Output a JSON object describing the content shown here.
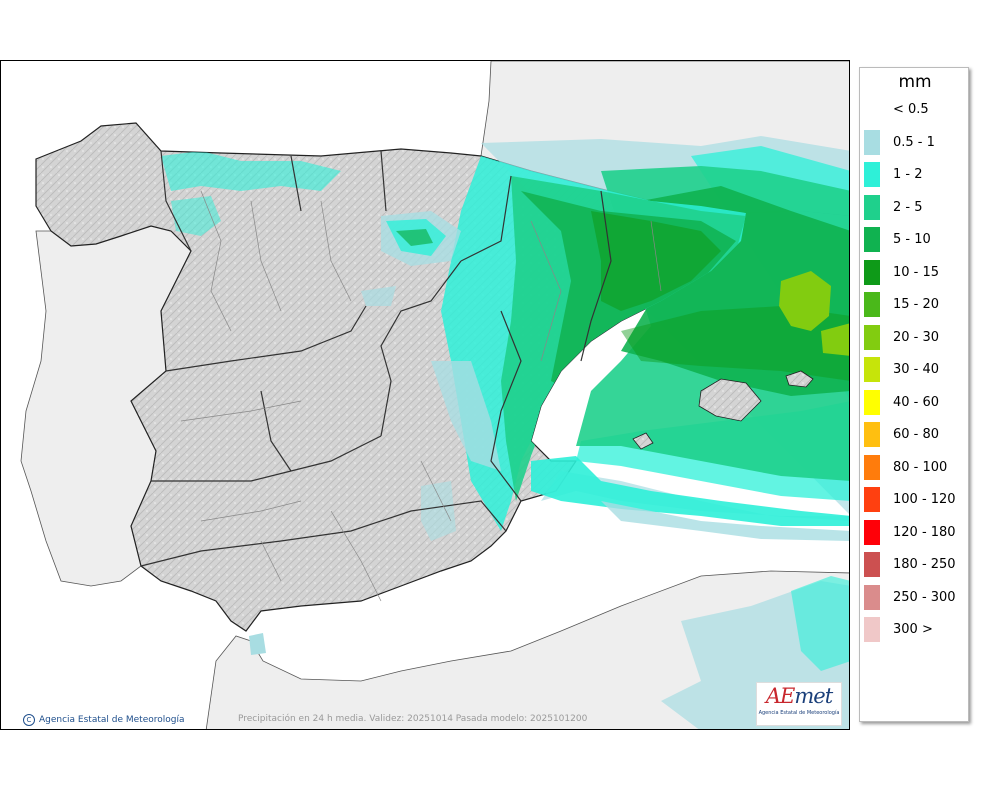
{
  "legend": {
    "unit": "mm",
    "classes": [
      {
        "label": "< 0.5",
        "color": "#ffffff"
      },
      {
        "label": "0.5 - 1",
        "color": "#a8dde2"
      },
      {
        "label": "1 - 2",
        "color": "#2ef0d8"
      },
      {
        "label": "2 - 5",
        "color": "#1fd08c"
      },
      {
        "label": "5 - 10",
        "color": "#10b250"
      },
      {
        "label": "10 - 15",
        "color": "#0e9a18"
      },
      {
        "label": "15 - 20",
        "color": "#4ab81a"
      },
      {
        "label": "20 - 30",
        "color": "#82cc10"
      },
      {
        "label": "30 - 40",
        "color": "#c6e40a"
      },
      {
        "label": "40 - 60",
        "color": "#ffff00"
      },
      {
        "label": "60 - 80",
        "color": "#ffbf10"
      },
      {
        "label": "80 - 100",
        "color": "#ff7c0c"
      },
      {
        "label": "100 - 120",
        "color": "#ff4010"
      },
      {
        "label": "120 - 180",
        "color": "#ff0008"
      },
      {
        "label": "180 - 250",
        "color": "#cc5050"
      },
      {
        "label": "250 - 300",
        "color": "#da8c8c"
      },
      {
        "label": "300 >",
        "color": "#f0c8c8"
      }
    ]
  },
  "credit": {
    "symbol": "C",
    "text": "Agencia Estatal de Meteorología"
  },
  "caption": "Precipitación en 24 h media. Validez: 20251014 Pasada modelo: 2025101200",
  "logo": {
    "word_a": "AE",
    "word_b": "met",
    "subtitle": "Agencia Estatal de Meteorología"
  },
  "colors": {
    "land": "#d4d4d4",
    "foreign_land": "#eeeeee",
    "sea": "#ffffff",
    "border": "#333333"
  }
}
